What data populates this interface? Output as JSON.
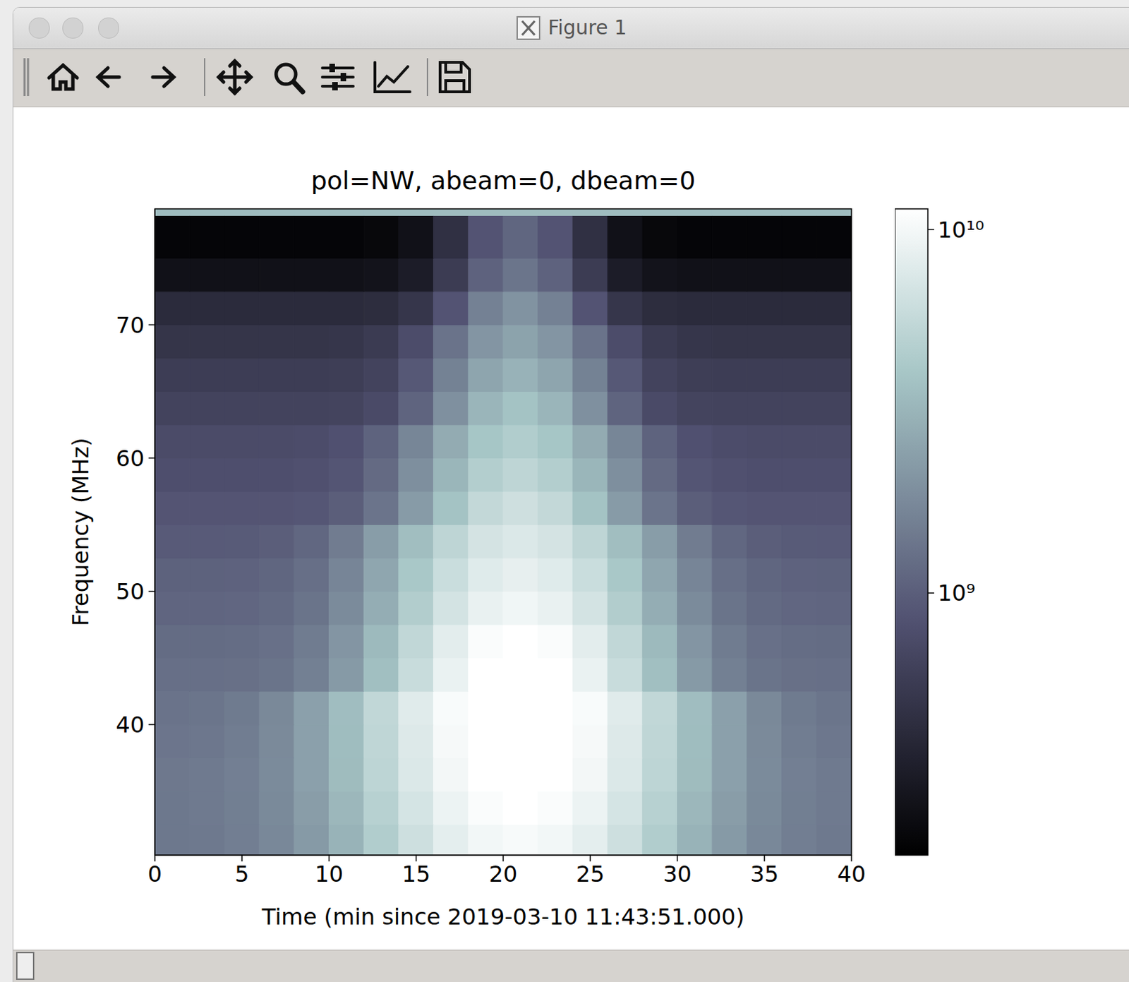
{
  "window_title": "Figure 1",
  "chart_data": {
    "type": "heatmap",
    "title": "pol=NW, abeam=0, dbeam=0",
    "x_label": "Time (min since 2019-03-10 11:43:51.000)",
    "y_label": "Frequency (MHz)",
    "xlim": [
      0,
      40
    ],
    "ylim": [
      30.2,
      78.7
    ],
    "xticks": [
      0,
      5,
      10,
      15,
      20,
      25,
      30,
      35,
      40
    ],
    "yticks": [
      40,
      50,
      60,
      70
    ],
    "x_edges": [
      0,
      2,
      4,
      6,
      8,
      10,
      12,
      14,
      16,
      18,
      20,
      22,
      24,
      26,
      28,
      30,
      32,
      34,
      36,
      38,
      40
    ],
    "y_edges": [
      30.2,
      32.5,
      35,
      37.5,
      40,
      42.5,
      45,
      47.5,
      50,
      52.5,
      55,
      57.5,
      60,
      62.5,
      65,
      67.5,
      70,
      72.5,
      75,
      78.2,
      78.7
    ],
    "cells": [
      [
        1410000000.0,
        1440000000.0,
        1530000000.0,
        1750000000.0,
        2240000000.0,
        3110000000.0,
        4550000000.0,
        6350000000.0,
        8330000000.0,
        9820000000.0,
        10400000000.0,
        9820000000.0,
        8330000000.0,
        6350000000.0,
        4550000000.0,
        3110000000.0,
        2240000000.0,
        1750000000.0,
        1530000000.0,
        1440000000.0
      ],
      [
        1410000000.0,
        1450000000.0,
        1550000000.0,
        1790000000.0,
        2330000000.0,
        3300000000.0,
        4900000000.0,
        6900000000.0,
        9100000000.0,
        10760000000.0,
        11400000000.0,
        10760000000.0,
        9100000000.0,
        6900000000.0,
        4900000000.0,
        3300000000.0,
        2330000000.0,
        1790000000.0,
        1550000000.0,
        1450000000.0
      ],
      [
        1420000000.0,
        1450000000.0,
        1560000000.0,
        1830000000.0,
        2420000000.0,
        3490000000.0,
        5250000000.0,
        7450000000.0,
        9870000000.0,
        11700000000.0,
        12400000000.0,
        11700000000.0,
        9870000000.0,
        7450000000.0,
        5250000000.0,
        3490000000.0,
        2420000000.0,
        1830000000.0,
        1560000000.0,
        1450000000.0
      ],
      [
        1370000000.0,
        1400000000.0,
        1520000000.0,
        1800000000.0,
        2420000000.0,
        3540000000.0,
        5380000000.0,
        7680000000.0,
        10200000000.0,
        12110000000.0,
        12850000000.0,
        12110000000.0,
        10200000000.0,
        7680000000.0,
        5380000000.0,
        3540000000.0,
        2420000000.0,
        1800000000.0,
        1520000000.0,
        1400000000.0
      ],
      [
        1320000000.0,
        1360000000.0,
        1470000000.0,
        1770000000.0,
        2420000000.0,
        3580000000.0,
        5500000000.0,
        7900000000.0,
        10540000000.0,
        12530000000.0,
        13300000000.0,
        12530000000.0,
        10540000000.0,
        7900000000.0,
        5500000000.0,
        3580000000.0,
        2420000000.0,
        1770000000.0,
        1470000000.0,
        1360000000.0
      ],
      [
        1250000000.0,
        1250000000.0,
        1270000000.0,
        1340000000.0,
        1570000000.0,
        2230000000.0,
        3670000000.0,
        5970000000.0,
        8960000000.0,
        11670000000.0,
        12750000000.0,
        11670000000.0,
        8960000000.0,
        5970000000.0,
        3670000000.0,
        2230000000.0,
        1570000000.0,
        1340000000.0,
        1270000000.0,
        1250000000.0
      ],
      [
        1200000000.0,
        1200000000.0,
        1220000000.0,
        1280000000.0,
        1490000000.0,
        2090000000.0,
        3400000000.0,
        5500000000.0,
        8240000000.0,
        10700000000.0,
        11700000000.0,
        10700000000.0,
        8240000000.0,
        5500000000.0,
        3400000000.0,
        2090000000.0,
        1490000000.0,
        1280000000.0,
        1220000000.0,
        1200000000.0
      ],
      [
        1100000000.0,
        1100000000.0,
        1120000000.0,
        1170000000.0,
        1340000000.0,
        1820000000.0,
        2890000000.0,
        4590000000.0,
        6800000000.0,
        8800000000.0,
        9600000000.0,
        8800000000.0,
        6800000000.0,
        4590000000.0,
        2890000000.0,
        1820000000.0,
        1340000000.0,
        1170000000.0,
        1120000000.0,
        1100000000.0
      ],
      [
        1050000000.0,
        1050000000.0,
        1060000000.0,
        1110000000.0,
        1260000000.0,
        1690000000.0,
        2630000000.0,
        4130000000.0,
        6080000000.0,
        7850000000.0,
        8550000000.0,
        7850000000.0,
        6080000000.0,
        4130000000.0,
        2630000000.0,
        1690000000.0,
        1260000000.0,
        1110000000.0,
        1060000000.0,
        1050000000.0
      ],
      [
        950000000.0,
        950000000.0,
        960000000.0,
        1000000000.0,
        1130000000.0,
        1500000000.0,
        2320000000.0,
        3620000000.0,
        5310000000.0,
        6840000000.0,
        7450000000.0,
        6840000000.0,
        5310000000.0,
        3620000000.0,
        2320000000.0,
        1500000000.0,
        1130000000.0,
        1000000000.0,
        960000000.0,
        950000000.0
      ],
      [
        880000000.0,
        880000000.0,
        880000000.0,
        880000000.0,
        900000000.0,
        1000000000.0,
        1350000000.0,
        2260000000.0,
        3850000000.0,
        5610000000.0,
        6380000000.0,
        5610000000.0,
        3850000000.0,
        2260000000.0,
        1350000000.0,
        1000000000.0,
        900000000.0,
        880000000.0,
        880000000.0,
        880000000.0
      ],
      [
        800000000.0,
        800000000.0,
        800000000.0,
        800000000.0,
        820000000.0,
        890000000.0,
        1180000000.0,
        1930000000.0,
        3230000000.0,
        4670000000.0,
        5300000000.0,
        4670000000.0,
        3230000000.0,
        1930000000.0,
        1180000000.0,
        890000000.0,
        820000000.0,
        800000000.0,
        800000000.0,
        800000000.0
      ],
      [
        750000000.0,
        750000000.0,
        750000000.0,
        750000000.0,
        770000000.0,
        830000000.0,
        1070000000.0,
        1700000000.0,
        2800000000.0,
        4020000000.0,
        4550000000.0,
        4020000000.0,
        2800000000.0,
        1700000000.0,
        1070000000.0,
        830000000.0,
        770000000.0,
        750000000.0,
        750000000.0,
        750000000.0
      ],
      [
        650000000.0,
        650000000.0,
        650000000.0,
        650000000.0,
        650000000.0,
        660000000.0,
        740000000.0,
        1080000000.0,
        1960000000.0,
        3210000000.0,
        3850000000.0,
        3210000000.0,
        1960000000.0,
        1080000000.0,
        740000000.0,
        660000000.0,
        650000000.0,
        650000000.0,
        650000000.0,
        650000000.0
      ],
      [
        580000000.0,
        580000000.0,
        580000000.0,
        580000000.0,
        580000000.0,
        590000000.0,
        650000000.0,
        920000000.0,
        1610000000.0,
        2580000000.0,
        3080000000.0,
        2580000000.0,
        1610000000.0,
        920000000.0,
        650000000.0,
        590000000.0,
        580000000.0,
        580000000.0,
        580000000.0,
        580000000.0
      ],
      [
        500000000.0,
        500000000.0,
        500000000.0,
        500000000.0,
        500000000.0,
        510000000.0,
        560000000.0,
        770000000.0,
        1320000000.0,
        2100000000.0,
        2500000000.0,
        2100000000.0,
        1320000000.0,
        770000000.0,
        560000000.0,
        510000000.0,
        500000000.0,
        500000000.0,
        500000000.0,
        500000000.0
      ],
      [
        420000000.0,
        420000000.0,
        420000000.0,
        420000000.0,
        420000000.0,
        420000000.0,
        430000000.0,
        510000000.0,
        870000000.0,
        1590000000.0,
        2020000000.0,
        1590000000.0,
        870000000.0,
        510000000.0,
        430000000.0,
        420000000.0,
        420000000.0,
        420000000.0,
        420000000.0,
        420000000.0
      ],
      [
        260000000.0,
        260000000.0,
        260000000.0,
        260000000.0,
        260000000.0,
        260000000.0,
        270000000.0,
        320000000.0,
        570000000.0,
        1060000000.0,
        1360000000.0,
        1060000000.0,
        570000000.0,
        320000000.0,
        270000000.0,
        260000000.0,
        260000000.0,
        260000000.0,
        260000000.0,
        260000000.0
      ],
      [
        210000000.0,
        210000000.0,
        210000000.0,
        210000000.0,
        210000000.0,
        210000000.0,
        220000000.0,
        260000000.0,
        460000000.0,
        870000000.0,
        1110000000.0,
        870000000.0,
        460000000.0,
        260000000.0,
        220000000.0,
        210000000.0,
        210000000.0,
        210000000.0,
        210000000.0,
        210000000.0
      ],
      [
        3500000000.0,
        3500000000.0,
        3500000000.0,
        3500000000.0,
        3500000000.0,
        3500000000.0,
        3500000000.0,
        3500000000.0,
        3500000000.0,
        3500000000.0,
        3500000000.0,
        3500000000.0,
        3500000000.0,
        3500000000.0,
        3500000000.0,
        3500000000.0,
        3500000000.0,
        3500000000.0,
        3500000000.0,
        3500000000.0
      ]
    ],
    "colorbar": {
      "range": [
        190000000.0,
        11400000000.0
      ],
      "log": true,
      "ticks": [
        {
          "value": 1000000000.0,
          "label": "10⁹"
        },
        {
          "value": 10000000000.0,
          "label": "10¹⁰"
        }
      ]
    }
  }
}
